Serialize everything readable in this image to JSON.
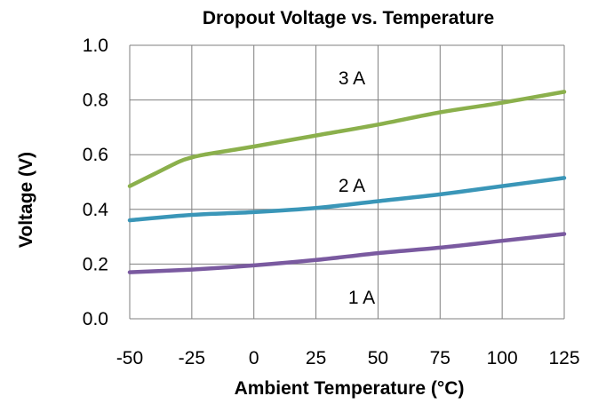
{
  "chart_data": {
    "type": "line",
    "title": "Dropout Voltage vs. Temperature",
    "xlabel": "Ambient Temperature (°C)",
    "ylabel": "Voltage  (V)",
    "xlim": [
      -50,
      125
    ],
    "ylim": [
      0.0,
      1.0
    ],
    "x_ticks": [
      "-50",
      "-25",
      "0",
      "25",
      "50",
      "75",
      "100",
      "125"
    ],
    "y_ticks": [
      "0.0",
      "0.2",
      "0.4",
      "0.6",
      "0.8",
      "1.0"
    ],
    "grid": true,
    "series": [
      {
        "name": "1 A",
        "color": "#7a5aa0",
        "x": [
          -50,
          -25,
          0,
          25,
          50,
          75,
          100,
          125
        ],
        "y": [
          0.17,
          0.18,
          0.195,
          0.215,
          0.24,
          0.26,
          0.285,
          0.31
        ]
      },
      {
        "name": "2 A",
        "color": "#3a96b8",
        "x": [
          -50,
          -25,
          0,
          25,
          50,
          75,
          100,
          125
        ],
        "y": [
          0.36,
          0.38,
          0.39,
          0.405,
          0.43,
          0.455,
          0.485,
          0.515
        ]
      },
      {
        "name": "3 A",
        "color": "#8bb04c",
        "x": [
          -50,
          -40,
          -30,
          -25,
          -20,
          -10,
          0,
          25,
          50,
          75,
          100,
          125
        ],
        "y": [
          0.485,
          0.53,
          0.575,
          0.59,
          0.6,
          0.615,
          0.63,
          0.67,
          0.71,
          0.755,
          0.79,
          0.83
        ]
      }
    ]
  }
}
